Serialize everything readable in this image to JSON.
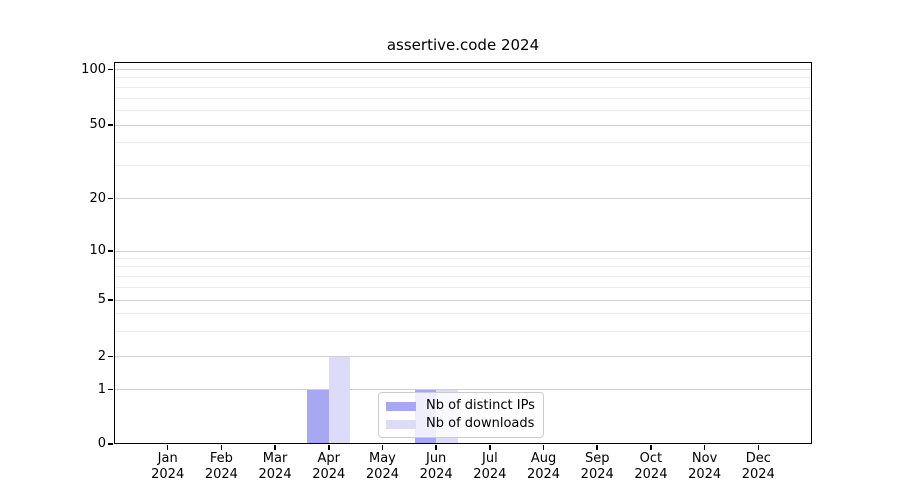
{
  "chart_data": {
    "type": "bar",
    "title": "assertive.code 2024",
    "x_months": [
      "Jan",
      "Feb",
      "Mar",
      "Apr",
      "May",
      "Jun",
      "Jul",
      "Aug",
      "Sep",
      "Oct",
      "Nov",
      "Dec"
    ],
    "x_year": "2024",
    "series": [
      {
        "name": "Nb of distinct IPs",
        "color": "#a8a8f2",
        "values": [
          0,
          0,
          0,
          1,
          0,
          1,
          0,
          0,
          0,
          0,
          0,
          0
        ]
      },
      {
        "name": "Nb of downloads",
        "color": "#dcdcf9",
        "values": [
          0,
          0,
          0,
          2,
          0,
          1,
          0,
          0,
          0,
          0,
          0,
          0
        ]
      }
    ],
    "yaxis": {
      "scale": "log-like",
      "major_ticks": [
        0,
        1,
        2,
        5,
        10,
        20,
        50,
        100
      ],
      "minor_ticks": [
        3,
        4,
        6,
        7,
        8,
        9,
        30,
        40,
        60,
        70,
        80,
        90
      ],
      "ylim": [
        0,
        110
      ]
    },
    "grid": true,
    "legend_position": "lower center"
  }
}
